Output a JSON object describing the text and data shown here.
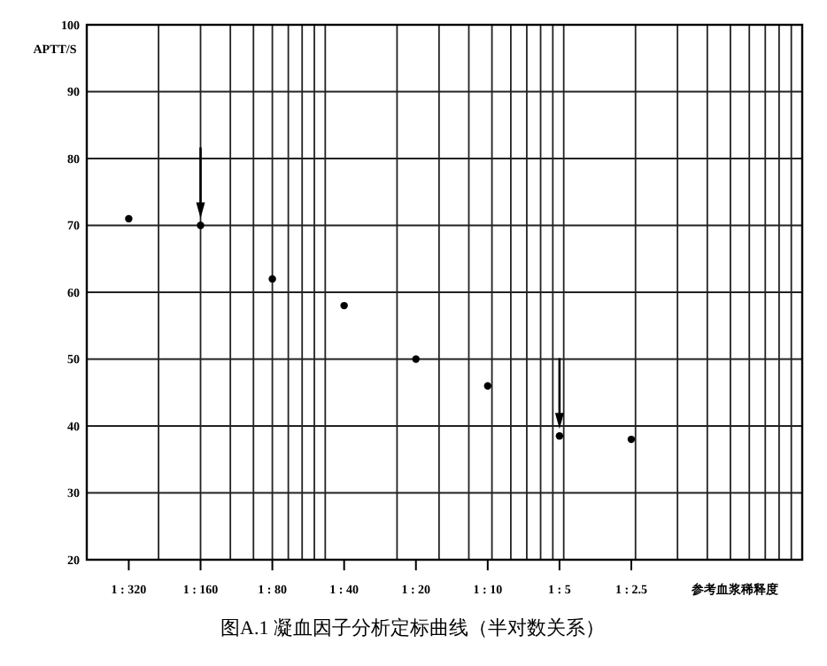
{
  "chart_data": {
    "type": "scatter",
    "title": "图A.1 凝血因子分析定标曲线（半对数关系）",
    "xlabel": "参考血浆稀释度",
    "ylabel": "APTT/S",
    "categories": [
      "1 : 320",
      "1 : 160",
      "1 : 80",
      "1 : 40",
      "1 : 20",
      "1 : 10",
      "1 : 5",
      "1 : 2.5"
    ],
    "series": [
      {
        "color": "#000000",
        "values": [
          71,
          70,
          62,
          58,
          50,
          46,
          38.5,
          38
        ]
      }
    ],
    "ylim": [
      20,
      100
    ],
    "yticks": [
      20,
      30,
      40,
      50,
      60,
      70,
      80,
      90,
      100
    ],
    "grid": true,
    "marker": "circle"
  }
}
